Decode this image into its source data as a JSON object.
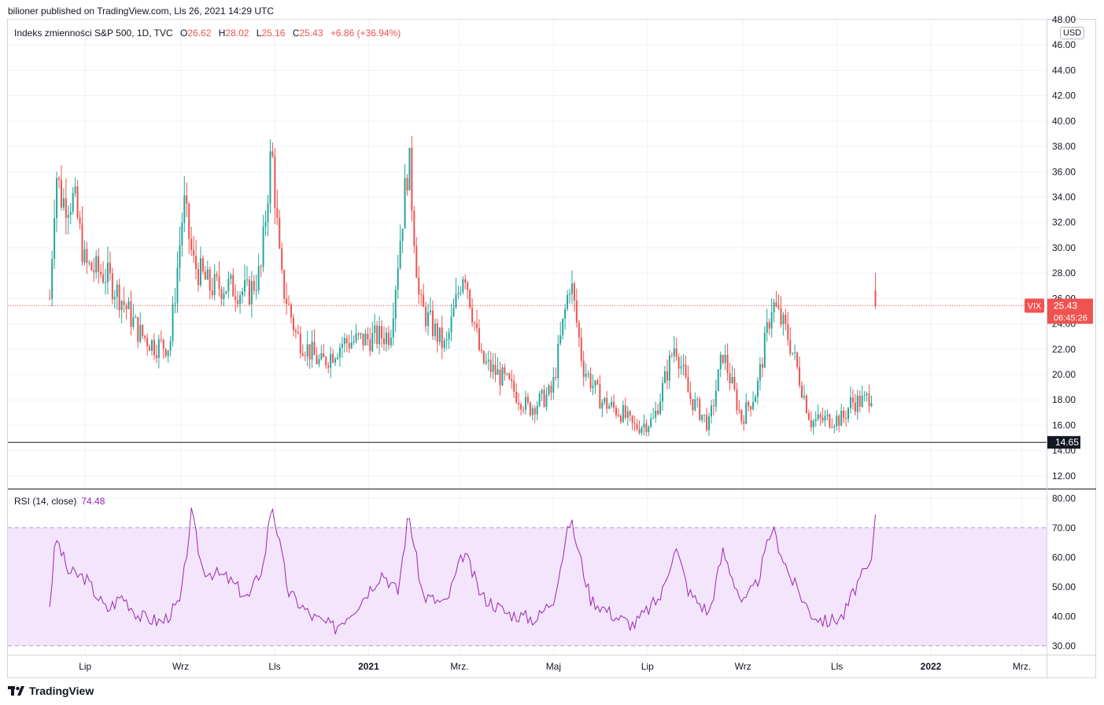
{
  "header": {
    "caption": "bilioner published on TradingView.com, Lls 26, 2021 14:29 UTC"
  },
  "main_pane": {
    "title": "Indeks zmienności S&P 500, 1D, TVC",
    "open_label": "O",
    "open": "26.62",
    "high_label": "H",
    "high": "28.02",
    "low_label": "L",
    "low": "25.16",
    "close_label": "C",
    "close": "25.43",
    "change": "+6.86 (+36.94%)",
    "currency": "USD",
    "price_tag": {
      "symbol": "VIX",
      "price": "25.43",
      "countdown": "06:45:26"
    },
    "support_level": "14.65",
    "y_ticks": [
      "12.00",
      "14.00",
      "16.00",
      "18.00",
      "20.00",
      "22.00",
      "24.00",
      "26.00",
      "28.00",
      "30.00",
      "32.00",
      "34.00",
      "36.00",
      "38.00",
      "40.00",
      "42.00",
      "44.00",
      "46.00",
      "48.00"
    ]
  },
  "rsi_pane": {
    "title": "RSI (14, close)",
    "value": "74.48",
    "y_ticks": [
      "30.00",
      "40.00",
      "50.00",
      "60.00",
      "70.00",
      "80.00"
    ]
  },
  "x_axis": {
    "labels": [
      "Lip",
      "Wrz",
      "Lls",
      "2021",
      "Mrz.",
      "Maj",
      "Lip",
      "Wrz",
      "Lls",
      "2022",
      "Mrz."
    ]
  },
  "colors": {
    "up": "#26a69a",
    "down": "#ef5350",
    "rsi": "#9c27b0",
    "rsi_band": "#f3e5fc",
    "grid": "#f0f3fa",
    "support": "#131722"
  },
  "footer": {
    "brand": "TradingView"
  },
  "chart_data": [
    {
      "type": "candlestick",
      "title": "Indeks zmienności S&P 500, 1D, TVC",
      "x_range": [
        "2020-06",
        "2022-03"
      ],
      "ylim": [
        11,
        48
      ],
      "horizontal_line": 14.65,
      "last": {
        "open": 26.62,
        "high": 28.02,
        "low": 25.16,
        "close": 25.43
      },
      "close_path": [
        {
          "date": "2020-06-08",
          "close": 26
        },
        {
          "date": "2020-06-12",
          "close": 36.1
        },
        {
          "date": "2020-06-16",
          "close": 33.7
        },
        {
          "date": "2020-06-24",
          "close": 33.8
        },
        {
          "date": "2020-07-01",
          "close": 28.6
        },
        {
          "date": "2020-07-15",
          "close": 27.8
        },
        {
          "date": "2020-07-24",
          "close": 26.1
        },
        {
          "date": "2020-08-05",
          "close": 23.3
        },
        {
          "date": "2020-08-15",
          "close": 22.3
        },
        {
          "date": "2020-08-25",
          "close": 22.3
        },
        {
          "date": "2020-09-03",
          "close": 33.6
        },
        {
          "date": "2020-09-09",
          "close": 28.8
        },
        {
          "date": "2020-09-20",
          "close": 26.9
        },
        {
          "date": "2020-10-01",
          "close": 27
        },
        {
          "date": "2020-10-15",
          "close": 26.4
        },
        {
          "date": "2020-10-23",
          "close": 28.1
        },
        {
          "date": "2020-10-30",
          "close": 38
        },
        {
          "date": "2020-11-05",
          "close": 27.6
        },
        {
          "date": "2020-11-15",
          "close": 23.1
        },
        {
          "date": "2020-12-01",
          "close": 20.8
        },
        {
          "date": "2020-12-15",
          "close": 22.5
        },
        {
          "date": "2021-01-01",
          "close": 22.8
        },
        {
          "date": "2021-01-15",
          "close": 23.2
        },
        {
          "date": "2021-01-27",
          "close": 37.2
        },
        {
          "date": "2021-02-03",
          "close": 25.5
        },
        {
          "date": "2021-02-20",
          "close": 22
        },
        {
          "date": "2021-03-04",
          "close": 28.6
        },
        {
          "date": "2021-03-15",
          "close": 21.1
        },
        {
          "date": "2021-03-30",
          "close": 19.6
        },
        {
          "date": "2021-04-15",
          "close": 17.3
        },
        {
          "date": "2021-04-30",
          "close": 18.6
        },
        {
          "date": "2021-05-12",
          "close": 27.6
        },
        {
          "date": "2021-05-20",
          "close": 20.7
        },
        {
          "date": "2021-06-01",
          "close": 17.9
        },
        {
          "date": "2021-06-15",
          "close": 16.9
        },
        {
          "date": "2021-06-22",
          "close": 15.8
        },
        {
          "date": "2021-07-05",
          "close": 16.4
        },
        {
          "date": "2021-07-19",
          "close": 22.5
        },
        {
          "date": "2021-07-28",
          "close": 18.3
        },
        {
          "date": "2021-08-10",
          "close": 16
        },
        {
          "date": "2021-08-19",
          "close": 21.7
        },
        {
          "date": "2021-08-31",
          "close": 16.5
        },
        {
          "date": "2021-09-10",
          "close": 18.8
        },
        {
          "date": "2021-09-20",
          "close": 25.7
        },
        {
          "date": "2021-09-30",
          "close": 23.1
        },
        {
          "date": "2021-10-05",
          "close": 21
        },
        {
          "date": "2021-10-15",
          "close": 16.3
        },
        {
          "date": "2021-10-29",
          "close": 16.5
        },
        {
          "date": "2021-11-05",
          "close": 16.5
        },
        {
          "date": "2021-11-10",
          "close": 17.8
        },
        {
          "date": "2021-11-19",
          "close": 17.9
        },
        {
          "date": "2021-11-24",
          "close": 18.6
        },
        {
          "date": "2021-11-26",
          "close": 25.43
        }
      ]
    },
    {
      "type": "line",
      "title": "RSI (14, close)",
      "ylim": [
        27,
        83
      ],
      "bands": [
        30,
        70
      ],
      "last": 74.48,
      "points": [
        {
          "date": "2020-06-08",
          "value": 44
        },
        {
          "date": "2020-06-12",
          "value": 67
        },
        {
          "date": "2020-06-20",
          "value": 55
        },
        {
          "date": "2020-07-01",
          "value": 53
        },
        {
          "date": "2020-07-15",
          "value": 42
        },
        {
          "date": "2020-07-25",
          "value": 47
        },
        {
          "date": "2020-08-05",
          "value": 40
        },
        {
          "date": "2020-08-20",
          "value": 38
        },
        {
          "date": "2020-09-01",
          "value": 45
        },
        {
          "date": "2020-09-08",
          "value": 75
        },
        {
          "date": "2020-09-15",
          "value": 56
        },
        {
          "date": "2020-10-01",
          "value": 53
        },
        {
          "date": "2020-10-15",
          "value": 46
        },
        {
          "date": "2020-10-25",
          "value": 58
        },
        {
          "date": "2020-10-30",
          "value": 79
        },
        {
          "date": "2020-11-10",
          "value": 48
        },
        {
          "date": "2020-11-25",
          "value": 40
        },
        {
          "date": "2020-12-10",
          "value": 36
        },
        {
          "date": "2020-12-25",
          "value": 44
        },
        {
          "date": "2021-01-10",
          "value": 55
        },
        {
          "date": "2021-01-20",
          "value": 48
        },
        {
          "date": "2021-01-27",
          "value": 75
        },
        {
          "date": "2021-02-05",
          "value": 47
        },
        {
          "date": "2021-02-20",
          "value": 44
        },
        {
          "date": "2021-03-04",
          "value": 62
        },
        {
          "date": "2021-03-15",
          "value": 47
        },
        {
          "date": "2021-04-01",
          "value": 41
        },
        {
          "date": "2021-04-20",
          "value": 39
        },
        {
          "date": "2021-05-01",
          "value": 46
        },
        {
          "date": "2021-05-12",
          "value": 73
        },
        {
          "date": "2021-05-25",
          "value": 46
        },
        {
          "date": "2021-06-10",
          "value": 40
        },
        {
          "date": "2021-06-22",
          "value": 37
        },
        {
          "date": "2021-07-10",
          "value": 47
        },
        {
          "date": "2021-07-19",
          "value": 64
        },
        {
          "date": "2021-07-28",
          "value": 48
        },
        {
          "date": "2021-08-10",
          "value": 41
        },
        {
          "date": "2021-08-19",
          "value": 62
        },
        {
          "date": "2021-09-01",
          "value": 44
        },
        {
          "date": "2021-09-10",
          "value": 51
        },
        {
          "date": "2021-09-20",
          "value": 70
        },
        {
          "date": "2021-10-01",
          "value": 54
        },
        {
          "date": "2021-10-15",
          "value": 41
        },
        {
          "date": "2021-10-25",
          "value": 38
        },
        {
          "date": "2021-11-05",
          "value": 40
        },
        {
          "date": "2021-11-15",
          "value": 52
        },
        {
          "date": "2021-11-24",
          "value": 58
        },
        {
          "date": "2021-11-26",
          "value": 74.48
        }
      ]
    }
  ]
}
